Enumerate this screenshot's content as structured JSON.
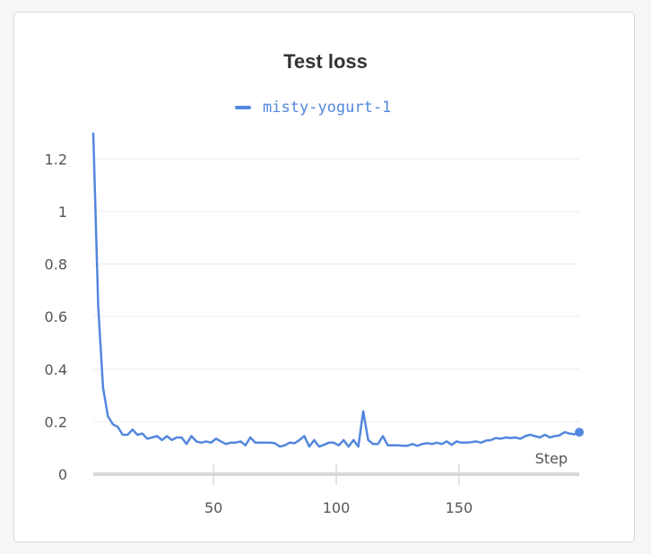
{
  "colors": {
    "series": "#5387dd",
    "grid": "#ececec",
    "axis": "#d8d8d8",
    "text": "#555555"
  },
  "chart_data": {
    "type": "line",
    "title": "Test loss",
    "xlabel": "Step",
    "ylabel": "",
    "xlim": [
      1,
      199
    ],
    "ylim": [
      0,
      1.3
    ],
    "grid": true,
    "legend": "top-center",
    "x_ticks": [
      50,
      100,
      150
    ],
    "x_tick_labels": [
      "50",
      "100",
      "150"
    ],
    "y_ticks": [
      0,
      0.2,
      0.4,
      0.6,
      0.8,
      1,
      1.2
    ],
    "y_tick_labels": [
      "0",
      "0.2",
      "0.4",
      "0.6",
      "0.8",
      "1",
      "1.2"
    ],
    "series": [
      {
        "name": "misty-yogurt-1",
        "x": [
          1,
          3,
          5,
          7,
          9,
          11,
          13,
          15,
          17,
          19,
          21,
          23,
          25,
          27,
          29,
          31,
          33,
          35,
          37,
          39,
          41,
          43,
          45,
          47,
          49,
          51,
          53,
          55,
          57,
          59,
          61,
          63,
          65,
          67,
          69,
          71,
          73,
          75,
          77,
          79,
          81,
          83,
          85,
          87,
          89,
          91,
          93,
          95,
          97,
          99,
          101,
          103,
          105,
          107,
          109,
          111,
          113,
          115,
          117,
          119,
          121,
          123,
          125,
          127,
          129,
          131,
          133,
          135,
          137,
          139,
          141,
          143,
          145,
          147,
          149,
          151,
          153,
          155,
          157,
          159,
          161,
          163,
          165,
          167,
          169,
          171,
          173,
          175,
          177,
          179,
          181,
          183,
          185,
          187,
          189,
          191,
          193,
          195,
          197,
          199
        ],
        "y": [
          1.3,
          0.64,
          0.33,
          0.22,
          0.19,
          0.18,
          0.15,
          0.15,
          0.17,
          0.15,
          0.155,
          0.135,
          0.14,
          0.145,
          0.13,
          0.145,
          0.13,
          0.14,
          0.14,
          0.115,
          0.145,
          0.125,
          0.12,
          0.125,
          0.12,
          0.135,
          0.125,
          0.115,
          0.12,
          0.12,
          0.125,
          0.11,
          0.14,
          0.12,
          0.12,
          0.12,
          0.12,
          0.118,
          0.105,
          0.11,
          0.12,
          0.118,
          0.13,
          0.145,
          0.105,
          0.13,
          0.105,
          0.112,
          0.12,
          0.12,
          0.11,
          0.13,
          0.105,
          0.13,
          0.105,
          0.24,
          0.13,
          0.115,
          0.115,
          0.145,
          0.11,
          0.11,
          0.11,
          0.108,
          0.108,
          0.115,
          0.108,
          0.115,
          0.118,
          0.115,
          0.12,
          0.115,
          0.125,
          0.112,
          0.125,
          0.12,
          0.12,
          0.122,
          0.125,
          0.12,
          0.128,
          0.13,
          0.138,
          0.135,
          0.14,
          0.138,
          0.14,
          0.135,
          0.145,
          0.15,
          0.145,
          0.14,
          0.15,
          0.14,
          0.145,
          0.148,
          0.16,
          0.155,
          0.152,
          0.16
        ]
      }
    ]
  }
}
